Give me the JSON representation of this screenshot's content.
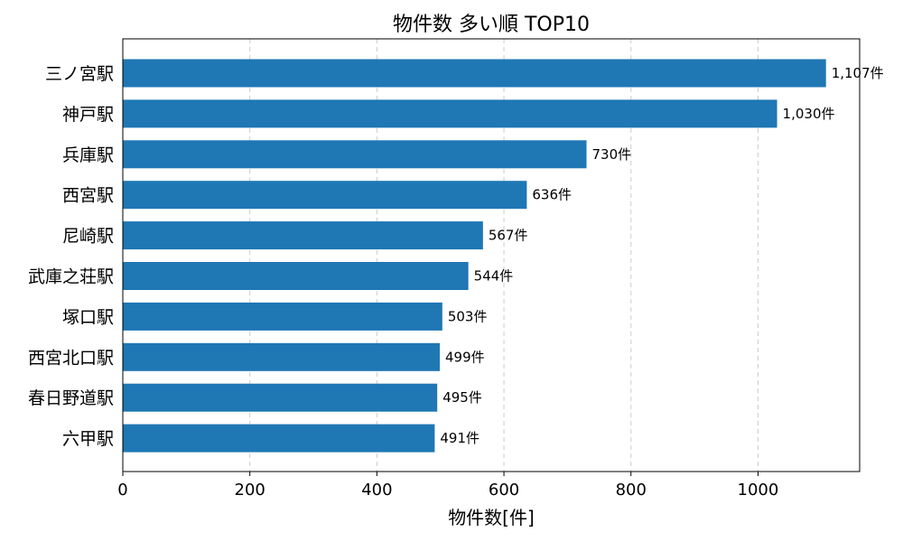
{
  "chart_data": {
    "type": "bar",
    "orientation": "horizontal",
    "title": "物件数 多い順 TOP10",
    "xlabel": "物件数[件]",
    "ylabel": "",
    "xlim": [
      0,
      1160
    ],
    "xticks": [
      0,
      200,
      400,
      600,
      800,
      1000
    ],
    "grid": "x-dashed",
    "bar_color": "#1f77b4",
    "categories": [
      "三ノ宮駅",
      "神戸駅",
      "兵庫駅",
      "西宮駅",
      "尼崎駅",
      "武庫之荘駅",
      "塚口駅",
      "西宮北口駅",
      "春日野道駅",
      "六甲駅"
    ],
    "values": [
      1107,
      1030,
      730,
      636,
      567,
      544,
      503,
      499,
      495,
      491
    ],
    "value_labels": [
      "1,107件",
      "1,030件",
      "730件",
      "636件",
      "567件",
      "544件",
      "503件",
      "499件",
      "495件",
      "491件"
    ]
  }
}
